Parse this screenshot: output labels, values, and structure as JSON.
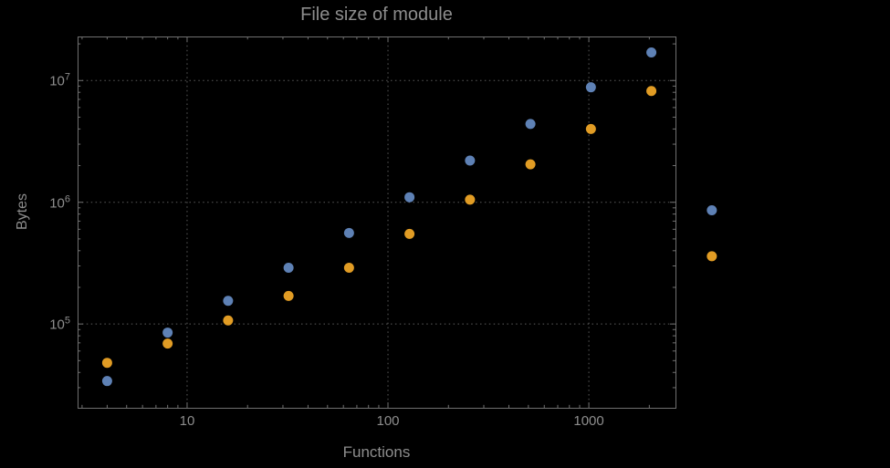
{
  "figure": {
    "background": "#000000",
    "text_color": "#8d8d8d"
  },
  "chart_data": {
    "type": "scatter",
    "title": "File size of module",
    "xlabel": "Functions",
    "ylabel": "Bytes",
    "x_scale": "log",
    "y_scale": "log",
    "xlim": [
      2.85,
      2700
    ],
    "ylim": [
      20500,
      23000000
    ],
    "grid": "dotted gridlines at major ticks only",
    "legend": "none",
    "plot_range_clipping": false,
    "x_ticks": [
      {
        "value": 10,
        "label": "10"
      },
      {
        "value": 100,
        "label": "100"
      },
      {
        "value": 1000,
        "label": "1000"
      }
    ],
    "y_ticks": [
      {
        "value": 100000,
        "mantissa": "10",
        "exponent": "5"
      },
      {
        "value": 1000000,
        "mantissa": "10",
        "exponent": "6"
      },
      {
        "value": 10000000,
        "mantissa": "10",
        "exponent": "7"
      }
    ],
    "series": [
      {
        "name": "blue-series",
        "color": "#5E81B5",
        "points": [
          [
            4,
            34000
          ],
          [
            8,
            85000
          ],
          [
            16,
            155000
          ],
          [
            32,
            290000
          ],
          [
            64,
            560000
          ],
          [
            128,
            1100000
          ],
          [
            256,
            2200000
          ],
          [
            512,
            4400000
          ],
          [
            1024,
            8800000
          ],
          [
            2048,
            17000000
          ],
          [
            4096,
            860000
          ]
        ]
      },
      {
        "name": "orange-series",
        "color": "#E19C24",
        "points": [
          [
            4,
            48000
          ],
          [
            8,
            69000
          ],
          [
            16,
            107000
          ],
          [
            32,
            170000
          ],
          [
            64,
            290000
          ],
          [
            128,
            550000
          ],
          [
            256,
            1050000
          ],
          [
            512,
            2050000
          ],
          [
            1024,
            4000000
          ],
          [
            2048,
            8200000
          ],
          [
            4096,
            360000
          ]
        ]
      }
    ]
  }
}
